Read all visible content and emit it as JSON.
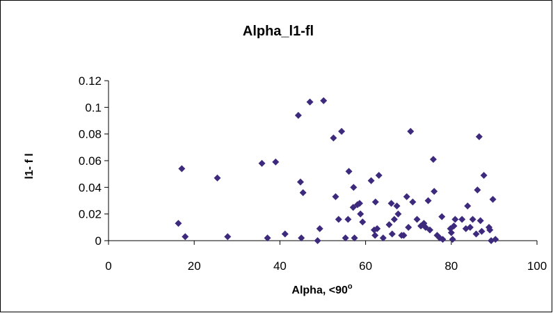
{
  "chart_data": {
    "type": "scatter",
    "title": "Alpha_l1-fl",
    "xlabel": "Alpha, <90",
    "xlabel_superscript": "o",
    "ylabel": "l1- f l",
    "xlim": [
      0,
      100
    ],
    "ylim": [
      0,
      0.12
    ],
    "xticks": [
      "0",
      "20",
      "40",
      "60",
      "80",
      "100"
    ],
    "yticks": [
      "0",
      "0.02",
      "0.04",
      "0.06",
      "0.08",
      "0.1",
      "0.12"
    ],
    "grid": false,
    "legend": "none",
    "marker": "diamond",
    "marker_color": "#3d2a7d",
    "series": [
      {
        "points": [
          [
            16.3,
            0.013
          ],
          [
            17.1,
            0.054
          ],
          [
            17.9,
            0.003
          ],
          [
            25.4,
            0.047
          ],
          [
            27.8,
            0.003
          ],
          [
            35.8,
            0.058
          ],
          [
            37.1,
            0.002
          ],
          [
            39.0,
            0.059
          ],
          [
            41.2,
            0.005
          ],
          [
            44.3,
            0.094
          ],
          [
            44.8,
            0.044
          ],
          [
            45.0,
            0.002
          ],
          [
            45.4,
            0.036
          ],
          [
            47.0,
            0.104
          ],
          [
            48.8,
            0.0
          ],
          [
            49.3,
            0.009
          ],
          [
            50.2,
            0.105
          ],
          [
            52.5,
            0.077
          ],
          [
            53.0,
            0.033
          ],
          [
            53.7,
            0.016
          ],
          [
            54.4,
            0.082
          ],
          [
            55.3,
            0.002
          ],
          [
            55.9,
            0.016
          ],
          [
            56.1,
            0.052
          ],
          [
            57.2,
            0.04
          ],
          [
            57.4,
            0.002
          ],
          [
            57.1,
            0.025
          ],
          [
            58.1,
            0.027
          ],
          [
            58.6,
            0.028
          ],
          [
            58.8,
            0.02
          ],
          [
            59.3,
            0.014
          ],
          [
            61.3,
            0.045
          ],
          [
            62.0,
            0.008
          ],
          [
            62.2,
            0.004
          ],
          [
            62.3,
            0.029
          ],
          [
            62.7,
            0.009
          ],
          [
            63.1,
            0.049
          ],
          [
            64.1,
            0.002
          ],
          [
            65.5,
            0.012
          ],
          [
            66.0,
            0.028
          ],
          [
            66.2,
            0.005
          ],
          [
            66.7,
            0.016
          ],
          [
            67.3,
            0.026
          ],
          [
            67.6,
            0.02
          ],
          [
            68.4,
            0.004
          ],
          [
            68.9,
            0.004
          ],
          [
            69.6,
            0.033
          ],
          [
            70.0,
            0.01
          ],
          [
            70.5,
            0.082
          ],
          [
            71.0,
            0.029
          ],
          [
            72.0,
            0.016
          ],
          [
            72.9,
            0.011
          ],
          [
            73.6,
            0.013
          ],
          [
            74.0,
            0.01
          ],
          [
            74.6,
            0.03
          ],
          [
            75.0,
            0.008
          ],
          [
            75.8,
            0.061
          ],
          [
            76.0,
            0.037
          ],
          [
            76.7,
            0.004
          ],
          [
            77.3,
            0.002
          ],
          [
            77.8,
            0.018
          ],
          [
            78.0,
            0.001
          ],
          [
            79.8,
            0.009
          ],
          [
            80.0,
            0.006
          ],
          [
            80.3,
            0.001
          ],
          [
            80.6,
            0.011
          ],
          [
            80.9,
            0.016
          ],
          [
            82.5,
            0.016
          ],
          [
            83.4,
            0.009
          ],
          [
            83.8,
            0.026
          ],
          [
            84.4,
            0.01
          ],
          [
            85.0,
            0.016
          ],
          [
            85.8,
            0.005
          ],
          [
            86.1,
            0.038
          ],
          [
            86.5,
            0.078
          ],
          [
            86.8,
            0.015
          ],
          [
            87.1,
            0.007
          ],
          [
            87.6,
            0.049
          ],
          [
            88.8,
            0.01
          ],
          [
            89.0,
            0.008
          ],
          [
            89.3,
            0.0
          ],
          [
            89.7,
            0.031
          ],
          [
            90.3,
            0.001
          ]
        ]
      }
    ]
  }
}
